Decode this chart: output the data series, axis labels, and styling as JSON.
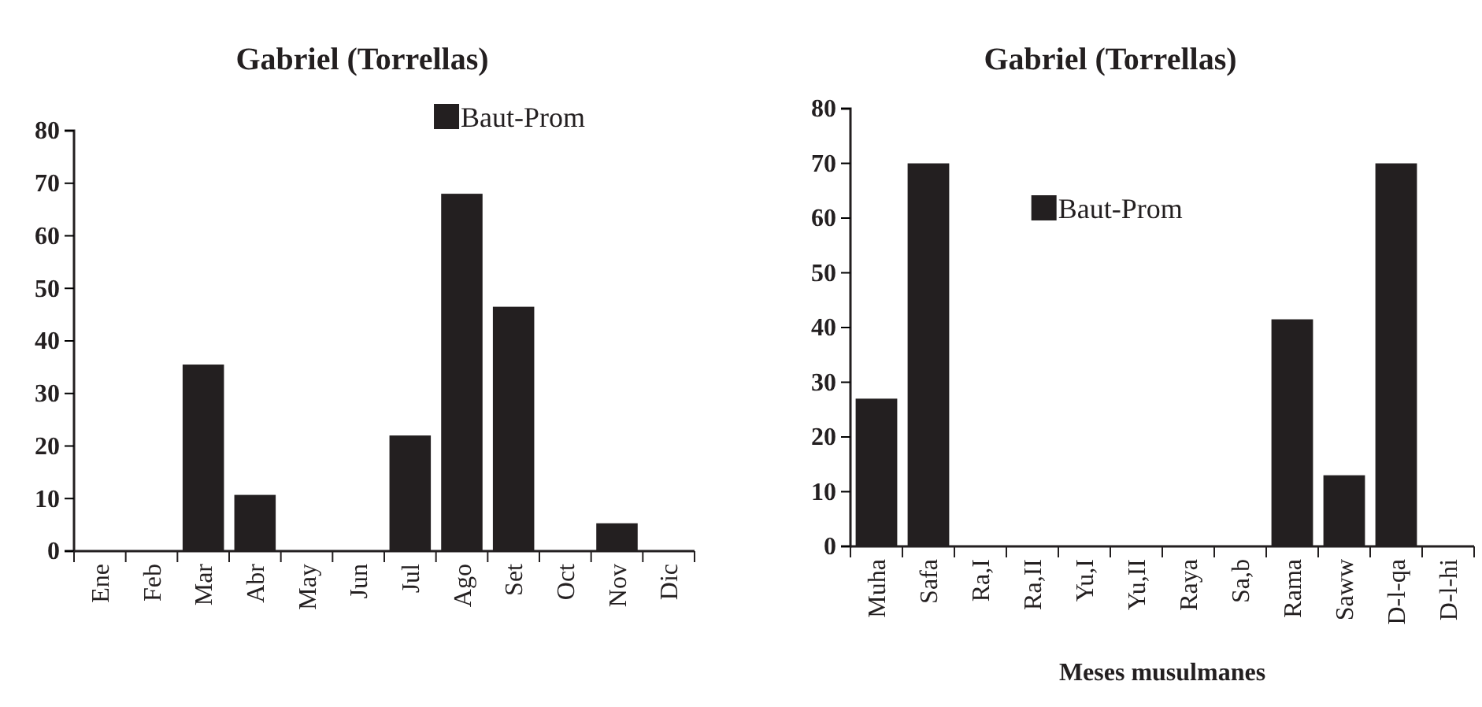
{
  "chart_data": [
    {
      "type": "bar",
      "title": "Gabriel (Torrellas)",
      "categories": [
        "Ene",
        "Feb",
        "Mar",
        "Abr",
        "May",
        "Jun",
        "Jul",
        "Ago",
        "Set",
        "Oct",
        "Nov",
        "Dic"
      ],
      "series": [
        {
          "name": "Baut-Prom",
          "color": "#231f20",
          "values": [
            0,
            0,
            35.5,
            10.7,
            0,
            0,
            22,
            68,
            46.5,
            0,
            5.3,
            0
          ]
        }
      ],
      "ylim": [
        0,
        80
      ],
      "yticks": [
        0,
        10,
        20,
        30,
        40,
        50,
        60,
        70,
        80
      ],
      "legend": "top right",
      "grid": false
    },
    {
      "type": "bar",
      "title": "Gabriel (Torrellas)",
      "xlabel": "Meses musulmanes",
      "categories": [
        "Muha",
        "Safa",
        "Ra,I",
        "Ra,II",
        "Yu,I",
        "Yu,II",
        "Raya",
        "Sa,b",
        "Rama",
        "Saww",
        "D-l-qa",
        "D-l-hi"
      ],
      "series": [
        {
          "name": "Baut-Prom",
          "color": "#231f20",
          "values": [
            27,
            70,
            0,
            0,
            0,
            0,
            0,
            0,
            41.5,
            13,
            70,
            0
          ]
        }
      ],
      "ylim": [
        0,
        80
      ],
      "yticks": [
        0,
        10,
        20,
        30,
        40,
        50,
        60,
        70,
        80
      ],
      "legend": "top",
      "grid": false
    }
  ]
}
